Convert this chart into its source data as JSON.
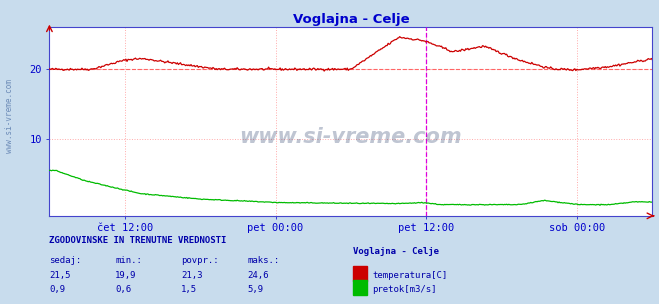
{
  "title": "Voglajna - Celje",
  "title_color": "#0000cc",
  "bg_color": "#c8dced",
  "plot_bg_color": "#ffffff",
  "grid_color": "#ffaaaa",
  "grid_style": "dotted",
  "axis_color": "#4444cc",
  "tick_label_color": "#0000cc",
  "watermark": "www.si-vreme.com",
  "watermark_color": "#1a3060",
  "ylim": [
    -1,
    26
  ],
  "yticks": [
    10,
    20
  ],
  "temp_color": "#cc0000",
  "flow_color": "#00bb00",
  "avg_line_color": "#ff6666",
  "avg_temp": 20.0,
  "vertical_line_color": "#dd00dd",
  "x_tick_labels": [
    "čet 12:00",
    "pet 00:00",
    "pet 12:00",
    "sob 00:00"
  ],
  "x_tick_positions": [
    0.125,
    0.375,
    0.625,
    0.875
  ],
  "footer_title": "ZGODOVINSKE IN TRENUTNE VREDNOSTI",
  "footer_color": "#0000aa",
  "footer_header": [
    "sedaj:",
    "min.:",
    "povpr.:",
    "maks.:"
  ],
  "footer_temp": [
    "21,5",
    "19,9",
    "21,3",
    "24,6"
  ],
  "footer_flow": [
    "0,9",
    "0,6",
    "1,5",
    "5,9"
  ],
  "legend_title": "Voglajna - Celje",
  "legend_temp_label": "temperatura[C]",
  "legend_flow_label": "pretok[m3/s]",
  "n_points": 576,
  "vline_x": 0.625
}
